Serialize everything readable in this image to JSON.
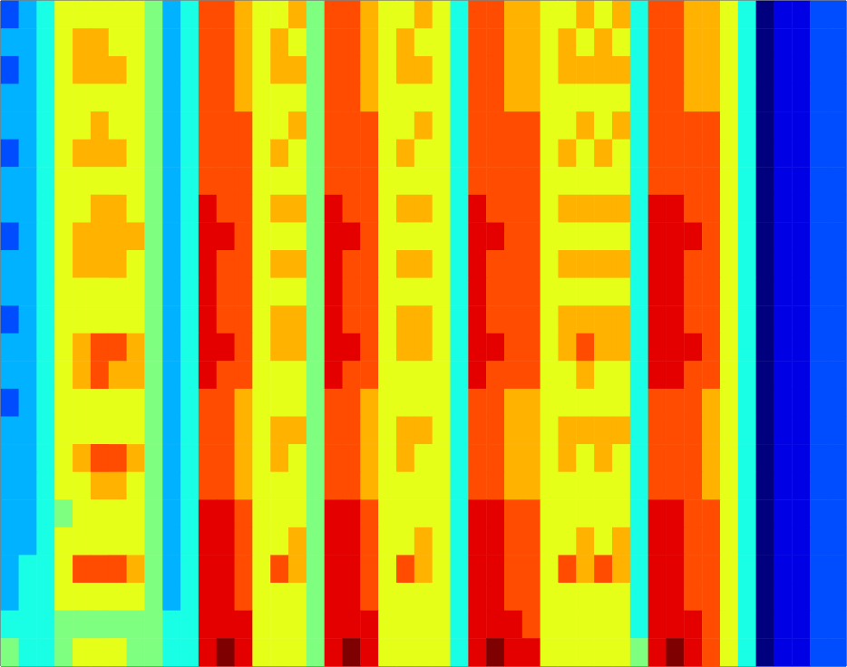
{
  "chart_data": {
    "type": "heatmap",
    "tick_labels": false,
    "grid": false,
    "color_range": [
      0,
      10
    ],
    "cells": [
      [
        2,
        3,
        4,
        6,
        6,
        6,
        6,
        6,
        5,
        3,
        4,
        8,
        8,
        7,
        6,
        6,
        7,
        5,
        8,
        8,
        7,
        6,
        6,
        7,
        6,
        4,
        8,
        8,
        7,
        7,
        6,
        6,
        7,
        6,
        7,
        4,
        8,
        8,
        7,
        7,
        6,
        4,
        0,
        1,
        1,
        2,
        2
      ],
      [
        3,
        3,
        4,
        6,
        7,
        7,
        6,
        6,
        5,
        3,
        4,
        8,
        8,
        7,
        6,
        7,
        6,
        5,
        8,
        8,
        7,
        6,
        7,
        6,
        6,
        4,
        8,
        8,
        7,
        7,
        6,
        7,
        6,
        7,
        6,
        4,
        8,
        8,
        7,
        7,
        6,
        4,
        0,
        1,
        1,
        2,
        2
      ],
      [
        2,
        3,
        4,
        6,
        7,
        7,
        7,
        6,
        5,
        3,
        4,
        8,
        8,
        7,
        6,
        7,
        7,
        5,
        8,
        8,
        7,
        6,
        7,
        7,
        6,
        4,
        8,
        8,
        7,
        7,
        6,
        7,
        7,
        7,
        7,
        4,
        8,
        8,
        7,
        7,
        6,
        4,
        0,
        1,
        1,
        2,
        2
      ],
      [
        3,
        3,
        4,
        6,
        6,
        6,
        6,
        6,
        5,
        3,
        4,
        8,
        8,
        7,
        6,
        6,
        6,
        5,
        8,
        8,
        7,
        6,
        6,
        6,
        6,
        4,
        8,
        8,
        7,
        7,
        6,
        6,
        6,
        6,
        6,
        4,
        8,
        8,
        7,
        7,
        6,
        4,
        0,
        1,
        1,
        2,
        2
      ],
      [
        3,
        3,
        4,
        6,
        6,
        7,
        6,
        6,
        5,
        3,
        4,
        8,
        8,
        8,
        6,
        6,
        7,
        5,
        8,
        8,
        8,
        6,
        6,
        7,
        6,
        4,
        8,
        8,
        8,
        8,
        6,
        6,
        7,
        6,
        7,
        4,
        8,
        8,
        8,
        8,
        6,
        4,
        0,
        1,
        1,
        2,
        2
      ],
      [
        2,
        3,
        4,
        6,
        7,
        7,
        7,
        6,
        5,
        3,
        4,
        8,
        8,
        8,
        6,
        7,
        6,
        5,
        8,
        8,
        8,
        6,
        7,
        6,
        6,
        4,
        8,
        8,
        8,
        8,
        6,
        7,
        6,
        7,
        6,
        4,
        8,
        8,
        8,
        8,
        6,
        4,
        0,
        1,
        1,
        2,
        2
      ],
      [
        3,
        3,
        4,
        6,
        6,
        6,
        6,
        6,
        5,
        3,
        4,
        8,
        8,
        8,
        6,
        6,
        6,
        5,
        8,
        8,
        8,
        6,
        6,
        6,
        6,
        4,
        8,
        8,
        8,
        8,
        6,
        6,
        6,
        6,
        6,
        4,
        8,
        8,
        8,
        8,
        6,
        4,
        0,
        1,
        1,
        2,
        2
      ],
      [
        3,
        3,
        4,
        6,
        6,
        7,
        7,
        6,
        5,
        3,
        4,
        9,
        8,
        8,
        6,
        7,
        7,
        5,
        9,
        8,
        8,
        6,
        7,
        7,
        6,
        4,
        9,
        8,
        8,
        8,
        6,
        7,
        7,
        7,
        7,
        4,
        9,
        9,
        8,
        8,
        6,
        4,
        0,
        1,
        1,
        2,
        2
      ],
      [
        2,
        3,
        4,
        6,
        7,
        7,
        7,
        7,
        5,
        3,
        4,
        9,
        9,
        8,
        6,
        6,
        6,
        5,
        9,
        9,
        8,
        6,
        6,
        6,
        6,
        4,
        9,
        9,
        8,
        8,
        6,
        6,
        6,
        6,
        6,
        4,
        9,
        9,
        9,
        8,
        6,
        4,
        0,
        1,
        1,
        2,
        2
      ],
      [
        3,
        3,
        4,
        6,
        7,
        7,
        7,
        6,
        5,
        3,
        4,
        9,
        8,
        8,
        6,
        7,
        7,
        5,
        9,
        8,
        8,
        6,
        7,
        7,
        6,
        4,
        9,
        8,
        8,
        8,
        6,
        7,
        7,
        7,
        7,
        4,
        9,
        9,
        8,
        8,
        6,
        4,
        0,
        1,
        1,
        2,
        2
      ],
      [
        3,
        3,
        4,
        6,
        6,
        6,
        6,
        6,
        5,
        3,
        4,
        9,
        8,
        8,
        6,
        6,
        6,
        5,
        9,
        8,
        8,
        6,
        6,
        6,
        6,
        4,
        9,
        8,
        8,
        8,
        6,
        6,
        6,
        6,
        6,
        4,
        9,
        9,
        8,
        8,
        6,
        4,
        0,
        1,
        1,
        2,
        2
      ],
      [
        2,
        3,
        4,
        6,
        6,
        6,
        6,
        6,
        5,
        3,
        4,
        9,
        8,
        8,
        6,
        7,
        7,
        5,
        9,
        8,
        8,
        6,
        7,
        7,
        6,
        4,
        9,
        8,
        8,
        8,
        6,
        7,
        7,
        7,
        7,
        4,
        9,
        9,
        8,
        8,
        6,
        4,
        0,
        1,
        1,
        2,
        2
      ],
      [
        3,
        3,
        4,
        6,
        7,
        8,
        8,
        7,
        5,
        3,
        4,
        9,
        9,
        8,
        6,
        7,
        7,
        5,
        9,
        9,
        8,
        6,
        7,
        7,
        6,
        4,
        9,
        9,
        8,
        8,
        6,
        7,
        8,
        7,
        7,
        4,
        9,
        9,
        9,
        8,
        6,
        4,
        0,
        1,
        1,
        2,
        2
      ],
      [
        3,
        3,
        4,
        6,
        7,
        8,
        7,
        7,
        5,
        3,
        4,
        9,
        8,
        8,
        6,
        6,
        6,
        5,
        9,
        8,
        8,
        6,
        6,
        6,
        6,
        4,
        9,
        8,
        8,
        8,
        6,
        6,
        7,
        6,
        6,
        4,
        9,
        9,
        8,
        8,
        6,
        4,
        0,
        1,
        1,
        2,
        2
      ],
      [
        2,
        3,
        4,
        6,
        6,
        6,
        6,
        6,
        5,
        3,
        4,
        8,
        8,
        7,
        6,
        6,
        6,
        5,
        8,
        8,
        7,
        6,
        6,
        6,
        6,
        4,
        8,
        8,
        7,
        7,
        6,
        6,
        6,
        6,
        6,
        4,
        8,
        8,
        8,
        7,
        6,
        4,
        0,
        1,
        1,
        2,
        2
      ],
      [
        3,
        3,
        4,
        6,
        6,
        6,
        6,
        6,
        5,
        3,
        4,
        8,
        8,
        7,
        6,
        7,
        7,
        5,
        8,
        8,
        7,
        6,
        7,
        7,
        6,
        4,
        8,
        8,
        7,
        7,
        6,
        7,
        7,
        7,
        7,
        4,
        8,
        8,
        8,
        7,
        6,
        4,
        0,
        1,
        1,
        2,
        2
      ],
      [
        3,
        3,
        4,
        6,
        7,
        8,
        8,
        7,
        5,
        3,
        4,
        8,
        8,
        7,
        6,
        7,
        6,
        5,
        8,
        8,
        7,
        6,
        7,
        6,
        6,
        4,
        8,
        8,
        7,
        7,
        6,
        7,
        6,
        7,
        6,
        4,
        8,
        8,
        8,
        7,
        6,
        4,
        0,
        1,
        1,
        2,
        2
      ],
      [
        3,
        3,
        4,
        6,
        6,
        7,
        7,
        6,
        5,
        3,
        4,
        8,
        8,
        7,
        6,
        6,
        6,
        5,
        8,
        8,
        7,
        6,
        6,
        6,
        6,
        4,
        8,
        8,
        7,
        7,
        6,
        6,
        6,
        6,
        6,
        4,
        8,
        8,
        8,
        7,
        6,
        4,
        0,
        1,
        1,
        2,
        2
      ],
      [
        3,
        3,
        4,
        5,
        6,
        6,
        6,
        6,
        5,
        3,
        4,
        9,
        9,
        8,
        6,
        6,
        6,
        5,
        9,
        9,
        8,
        6,
        6,
        6,
        6,
        4,
        9,
        9,
        8,
        8,
        6,
        6,
        6,
        6,
        6,
        4,
        9,
        9,
        8,
        8,
        6,
        4,
        0,
        1,
        1,
        2,
        2
      ],
      [
        3,
        3,
        4,
        6,
        6,
        6,
        6,
        6,
        5,
        3,
        4,
        9,
        9,
        8,
        6,
        6,
        7,
        5,
        9,
        9,
        8,
        6,
        6,
        7,
        6,
        4,
        9,
        9,
        8,
        8,
        6,
        6,
        7,
        6,
        7,
        4,
        9,
        9,
        8,
        8,
        6,
        4,
        0,
        1,
        1,
        2,
        2
      ],
      [
        3,
        4,
        4,
        6,
        8,
        8,
        8,
        7,
        5,
        3,
        4,
        9,
        9,
        8,
        6,
        8,
        7,
        5,
        9,
        9,
        8,
        6,
        8,
        7,
        6,
        4,
        9,
        9,
        8,
        8,
        6,
        8,
        7,
        8,
        7,
        4,
        9,
        9,
        8,
        8,
        6,
        4,
        0,
        1,
        1,
        2,
        2
      ],
      [
        3,
        4,
        4,
        6,
        6,
        6,
        6,
        6,
        5,
        3,
        4,
        9,
        9,
        8,
        6,
        6,
        6,
        5,
        9,
        9,
        8,
        6,
        6,
        6,
        6,
        4,
        9,
        9,
        8,
        8,
        6,
        6,
        6,
        6,
        6,
        4,
        9,
        9,
        8,
        8,
        6,
        4,
        0,
        1,
        1,
        2,
        2
      ],
      [
        4,
        4,
        4,
        5,
        5,
        5,
        5,
        5,
        5,
        4,
        4,
        9,
        9,
        9,
        6,
        6,
        6,
        5,
        9,
        9,
        9,
        6,
        6,
        6,
        6,
        4,
        9,
        9,
        9,
        8,
        6,
        6,
        6,
        6,
        6,
        4,
        9,
        9,
        9,
        8,
        6,
        4,
        0,
        1,
        1,
        2,
        2
      ],
      [
        5,
        4,
        4,
        5,
        6,
        6,
        6,
        5,
        5,
        4,
        4,
        9,
        10,
        9,
        6,
        6,
        6,
        5,
        9,
        10,
        9,
        6,
        6,
        6,
        6,
        4,
        9,
        10,
        9,
        9,
        6,
        6,
        6,
        6,
        6,
        5,
        9,
        10,
        9,
        8,
        6,
        4,
        0,
        1,
        1,
        2,
        2
      ]
    ]
  }
}
